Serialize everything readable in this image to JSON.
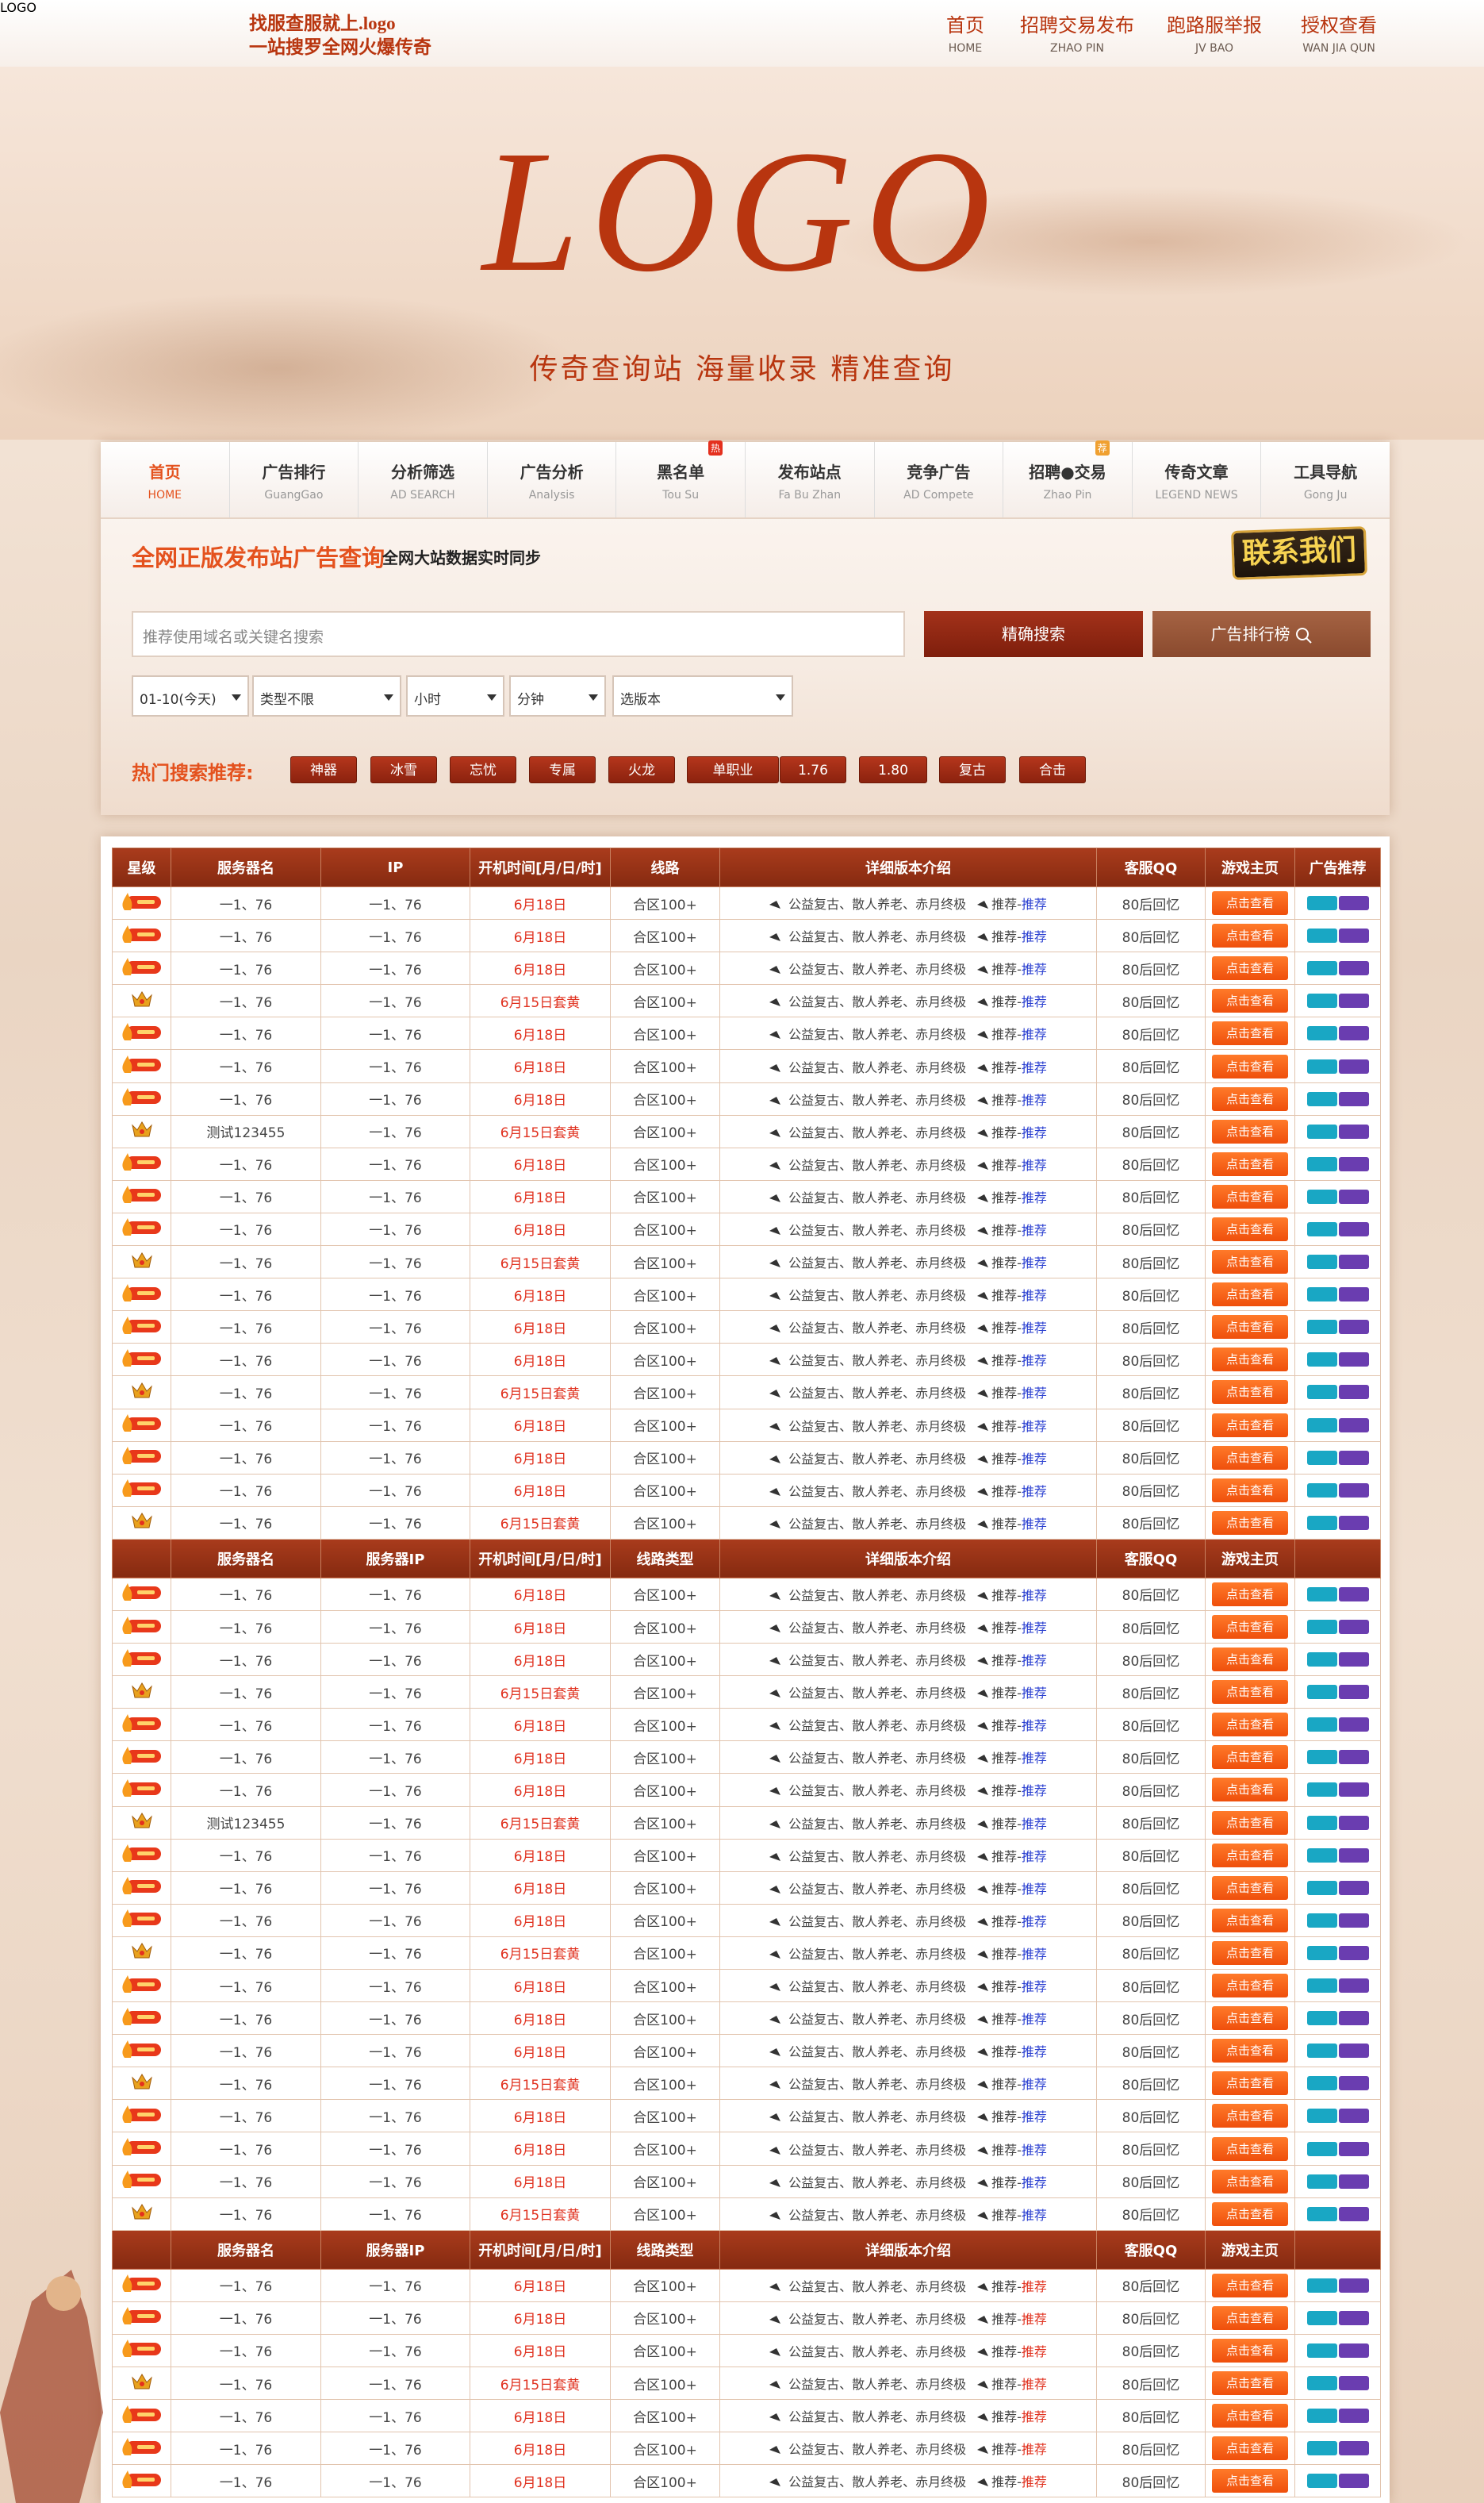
{
  "header": {
    "logo": "LOGO",
    "tagline1": "找服查服就上.logo",
    "tagline2": "一站搜罗全网火爆传奇",
    "nav": [
      {
        "label": "首页",
        "sub": "HOME"
      },
      {
        "label": "招聘交易发布",
        "sub": "ZHAO PIN"
      },
      {
        "label": "跑路服举报",
        "sub": "JV BAO"
      },
      {
        "label": "授权查看",
        "sub": "WAN JIA QUN"
      }
    ]
  },
  "banner": {
    "logo": "LOGO",
    "slogan": "传奇查询站 海量收录 精准查询"
  },
  "tabs": [
    {
      "label": "首页",
      "sub": "HOME"
    },
    {
      "label": "广告排行",
      "sub": "GuangGao"
    },
    {
      "label": "分析筛选",
      "sub": "AD SEARCH"
    },
    {
      "label": "广告分析",
      "sub": "Analysis"
    },
    {
      "label": "黑名单",
      "sub": "Tou Su",
      "badge": "热"
    },
    {
      "label": "发布站点",
      "sub": "Fa Bu Zhan"
    },
    {
      "label": "竞争广告",
      "sub": "AD Compete"
    },
    {
      "label": "招聘●交易",
      "sub": "Zhao Pin",
      "badge": "荐"
    },
    {
      "label": "传奇文章",
      "sub": "LEGEND NEWS"
    },
    {
      "label": "工具导航",
      "sub": "Gong Ju"
    }
  ],
  "search": {
    "title": "全网正版发布站广告查询",
    "subtitle": "全网大站数据实时同步",
    "contact": "联系我们",
    "placeholder": "推荐使用域名或关键名搜索",
    "search_button": "精确搜索",
    "rank_button": "广告排行榜",
    "selects": [
      "01-10(今天)",
      "类型不限",
      "小时",
      "分钟",
      "选版本"
    ],
    "hot_label": "热门搜索推荐:",
    "hot_tags": [
      "神器",
      "冰雪",
      "忘忧",
      "专属",
      "火龙",
      "单职业",
      "1.76",
      "1.80",
      "复古",
      "合击"
    ]
  },
  "table": {
    "sections": [
      {
        "tag_color": "#2a3fd0",
        "headers": [
          "星级",
          "服务器名",
          "IP",
          "开机时间[月/日/时]",
          "线路",
          "详细版本介绍",
          "客服QQ",
          "游戏主页",
          "广告推荐"
        ],
        "rows": [
          [
            "hot",
            "一1、76",
            "一1、76",
            "6月18日",
            "合区100+",
            "公益复古、散人养老、赤月终极",
            "推荐-",
            "推荐",
            "80后回忆",
            "点击查看"
          ],
          [
            "hot",
            "一1、76",
            "一1、76",
            "6月18日",
            "合区100+",
            "公益复古、散人养老、赤月终极",
            "推荐-",
            "推荐",
            "80后回忆",
            "点击查看"
          ],
          [
            "hot",
            "一1、76",
            "一1、76",
            "6月18日",
            "合区100+",
            "公益复古、散人养老、赤月终极",
            "推荐-",
            "推荐",
            "80后回忆",
            "点击查看"
          ],
          [
            "crown",
            "一1、76",
            "一1、76",
            "6月15日套黄",
            "合区100+",
            "公益复古、散人养老、赤月终极",
            "推荐-",
            "推荐",
            "80后回忆",
            "点击查看"
          ],
          [
            "hot",
            "一1、76",
            "一1、76",
            "6月18日",
            "合区100+",
            "公益复古、散人养老、赤月终极",
            "推荐-",
            "推荐",
            "80后回忆",
            "点击查看"
          ],
          [
            "hot",
            "一1、76",
            "一1、76",
            "6月18日",
            "合区100+",
            "公益复古、散人养老、赤月终极",
            "推荐-",
            "推荐",
            "80后回忆",
            "点击查看"
          ],
          [
            "hot",
            "一1、76",
            "一1、76",
            "6月18日",
            "合区100+",
            "公益复古、散人养老、赤月终极",
            "推荐-",
            "推荐",
            "80后回忆",
            "点击查看"
          ],
          [
            "crown",
            "测试123455",
            "一1、76",
            "6月15日套黄",
            "合区100+",
            "公益复古、散人养老、赤月终极",
            "推荐-",
            "推荐",
            "80后回忆",
            "点击查看"
          ],
          [
            "hot",
            "一1、76",
            "一1、76",
            "6月18日",
            "合区100+",
            "公益复古、散人养老、赤月终极",
            "推荐-",
            "推荐",
            "80后回忆",
            "点击查看"
          ],
          [
            "hot",
            "一1、76",
            "一1、76",
            "6月18日",
            "合区100+",
            "公益复古、散人养老、赤月终极",
            "推荐-",
            "推荐",
            "80后回忆",
            "点击查看"
          ],
          [
            "hot",
            "一1、76",
            "一1、76",
            "6月18日",
            "合区100+",
            "公益复古、散人养老、赤月终极",
            "推荐-",
            "推荐",
            "80后回忆",
            "点击查看"
          ],
          [
            "crown",
            "一1、76",
            "一1、76",
            "6月15日套黄",
            "合区100+",
            "公益复古、散人养老、赤月终极",
            "推荐-",
            "推荐",
            "80后回忆",
            "点击查看"
          ],
          [
            "hot",
            "一1、76",
            "一1、76",
            "6月18日",
            "合区100+",
            "公益复古、散人养老、赤月终极",
            "推荐-",
            "推荐",
            "80后回忆",
            "点击查看"
          ],
          [
            "hot",
            "一1、76",
            "一1、76",
            "6月18日",
            "合区100+",
            "公益复古、散人养老、赤月终极",
            "推荐-",
            "推荐",
            "80后回忆",
            "点击查看"
          ],
          [
            "hot",
            "一1、76",
            "一1、76",
            "6月18日",
            "合区100+",
            "公益复古、散人养老、赤月终极",
            "推荐-",
            "推荐",
            "80后回忆",
            "点击查看"
          ],
          [
            "crown",
            "一1、76",
            "一1、76",
            "6月15日套黄",
            "合区100+",
            "公益复古、散人养老、赤月终极",
            "推荐-",
            "推荐",
            "80后回忆",
            "点击查看"
          ],
          [
            "hot",
            "一1、76",
            "一1、76",
            "6月18日",
            "合区100+",
            "公益复古、散人养老、赤月终极",
            "推荐-",
            "推荐",
            "80后回忆",
            "点击查看"
          ],
          [
            "hot",
            "一1、76",
            "一1、76",
            "6月18日",
            "合区100+",
            "公益复古、散人养老、赤月终极",
            "推荐-",
            "推荐",
            "80后回忆",
            "点击查看"
          ],
          [
            "hot",
            "一1、76",
            "一1、76",
            "6月18日",
            "合区100+",
            "公益复古、散人养老、赤月终极",
            "推荐-",
            "推荐",
            "80后回忆",
            "点击查看"
          ],
          [
            "crown",
            "一1、76",
            "一1、76",
            "6月15日套黄",
            "合区100+",
            "公益复古、散人养老、赤月终极",
            "推荐-",
            "推荐",
            "80后回忆",
            "点击查看"
          ]
        ]
      },
      {
        "tag_color": "#2a3fd0",
        "headers": [
          null,
          "服务器名",
          "服务器IP",
          "开机时间[月/日/时]",
          "线路类型",
          "详细版本介绍",
          "客服QQ",
          "游戏主页",
          null
        ],
        "rows": [
          [
            "hot",
            "一1、76",
            "一1、76",
            "6月18日",
            "合区100+",
            "公益复古、散人养老、赤月终极",
            "推荐-",
            "推荐",
            "80后回忆",
            "点击查看"
          ],
          [
            "hot",
            "一1、76",
            "一1、76",
            "6月18日",
            "合区100+",
            "公益复古、散人养老、赤月终极",
            "推荐-",
            "推荐",
            "80后回忆",
            "点击查看"
          ],
          [
            "hot",
            "一1、76",
            "一1、76",
            "6月18日",
            "合区100+",
            "公益复古、散人养老、赤月终极",
            "推荐-",
            "推荐",
            "80后回忆",
            "点击查看"
          ],
          [
            "crown",
            "一1、76",
            "一1、76",
            "6月15日套黄",
            "合区100+",
            "公益复古、散人养老、赤月终极",
            "推荐-",
            "推荐",
            "80后回忆",
            "点击查看"
          ],
          [
            "hot",
            "一1、76",
            "一1、76",
            "6月18日",
            "合区100+",
            "公益复古、散人养老、赤月终极",
            "推荐-",
            "推荐",
            "80后回忆",
            "点击查看"
          ],
          [
            "hot",
            "一1、76",
            "一1、76",
            "6月18日",
            "合区100+",
            "公益复古、散人养老、赤月终极",
            "推荐-",
            "推荐",
            "80后回忆",
            "点击查看"
          ],
          [
            "hot",
            "一1、76",
            "一1、76",
            "6月18日",
            "合区100+",
            "公益复古、散人养老、赤月终极",
            "推荐-",
            "推荐",
            "80后回忆",
            "点击查看"
          ],
          [
            "crown",
            "测试123455",
            "一1、76",
            "6月15日套黄",
            "合区100+",
            "公益复古、散人养老、赤月终极",
            "推荐-",
            "推荐",
            "80后回忆",
            "点击查看"
          ],
          [
            "hot",
            "一1、76",
            "一1、76",
            "6月18日",
            "合区100+",
            "公益复古、散人养老、赤月终极",
            "推荐-",
            "推荐",
            "80后回忆",
            "点击查看"
          ],
          [
            "hot",
            "一1、76",
            "一1、76",
            "6月18日",
            "合区100+",
            "公益复古、散人养老、赤月终极",
            "推荐-",
            "推荐",
            "80后回忆",
            "点击查看"
          ],
          [
            "hot",
            "一1、76",
            "一1、76",
            "6月18日",
            "合区100+",
            "公益复古、散人养老、赤月终极",
            "推荐-",
            "推荐",
            "80后回忆",
            "点击查看"
          ],
          [
            "crown",
            "一1、76",
            "一1、76",
            "6月15日套黄",
            "合区100+",
            "公益复古、散人养老、赤月终极",
            "推荐-",
            "推荐",
            "80后回忆",
            "点击查看"
          ],
          [
            "hot",
            "一1、76",
            "一1、76",
            "6月18日",
            "合区100+",
            "公益复古、散人养老、赤月终极",
            "推荐-",
            "推荐",
            "80后回忆",
            "点击查看"
          ],
          [
            "hot",
            "一1、76",
            "一1、76",
            "6月18日",
            "合区100+",
            "公益复古、散人养老、赤月终极",
            "推荐-",
            "推荐",
            "80后回忆",
            "点击查看"
          ],
          [
            "hot",
            "一1、76",
            "一1、76",
            "6月18日",
            "合区100+",
            "公益复古、散人养老、赤月终极",
            "推荐-",
            "推荐",
            "80后回忆",
            "点击查看"
          ],
          [
            "crown",
            "一1、76",
            "一1、76",
            "6月15日套黄",
            "合区100+",
            "公益复古、散人养老、赤月终极",
            "推荐-",
            "推荐",
            "80后回忆",
            "点击查看"
          ],
          [
            "hot",
            "一1、76",
            "一1、76",
            "6月18日",
            "合区100+",
            "公益复古、散人养老、赤月终极",
            "推荐-",
            "推荐",
            "80后回忆",
            "点击查看"
          ],
          [
            "hot",
            "一1、76",
            "一1、76",
            "6月18日",
            "合区100+",
            "公益复古、散人养老、赤月终极",
            "推荐-",
            "推荐",
            "80后回忆",
            "点击查看"
          ],
          [
            "hot",
            "一1、76",
            "一1、76",
            "6月18日",
            "合区100+",
            "公益复古、散人养老、赤月终极",
            "推荐-",
            "推荐",
            "80后回忆",
            "点击查看"
          ],
          [
            "crown",
            "一1、76",
            "一1、76",
            "6月15日套黄",
            "合区100+",
            "公益复古、散人养老、赤月终极",
            "推荐-",
            "推荐",
            "80后回忆",
            "点击查看"
          ]
        ]
      },
      {
        "tag_color": "#e0301e",
        "headers": [
          null,
          "服务器名",
          "服务器IP",
          "开机时间[月/日/时]",
          "线路类型",
          "详细版本介绍",
          "客服QQ",
          "游戏主页",
          null
        ],
        "rows": [
          [
            "hot",
            "一1、76",
            "一1、76",
            "6月18日",
            "合区100+",
            "公益复古、散人养老、赤月终极",
            "推荐-",
            "推荐",
            "80后回忆",
            "点击查看"
          ],
          [
            "hot",
            "一1、76",
            "一1、76",
            "6月18日",
            "合区100+",
            "公益复古、散人养老、赤月终极",
            "推荐-",
            "推荐",
            "80后回忆",
            "点击查看"
          ],
          [
            "hot",
            "一1、76",
            "一1、76",
            "6月18日",
            "合区100+",
            "公益复古、散人养老、赤月终极",
            "推荐-",
            "推荐",
            "80后回忆",
            "点击查看"
          ],
          [
            "crown",
            "一1、76",
            "一1、76",
            "6月15日套黄",
            "合区100+",
            "公益复古、散人养老、赤月终极",
            "推荐-",
            "推荐",
            "80后回忆",
            "点击查看"
          ],
          [
            "hot",
            "一1、76",
            "一1、76",
            "6月18日",
            "合区100+",
            "公益复古、散人养老、赤月终极",
            "推荐-",
            "推荐",
            "80后回忆",
            "点击查看"
          ],
          [
            "hot",
            "一1、76",
            "一1、76",
            "6月18日",
            "合区100+",
            "公益复古、散人养老、赤月终极",
            "推荐-",
            "推荐",
            "80后回忆",
            "点击查看"
          ],
          [
            "hot",
            "一1、76",
            "一1、76",
            "6月18日",
            "合区100+",
            "公益复古、散人养老、赤月终极",
            "推荐-",
            "推荐",
            "80后回忆",
            "点击查看"
          ]
        ]
      }
    ]
  }
}
